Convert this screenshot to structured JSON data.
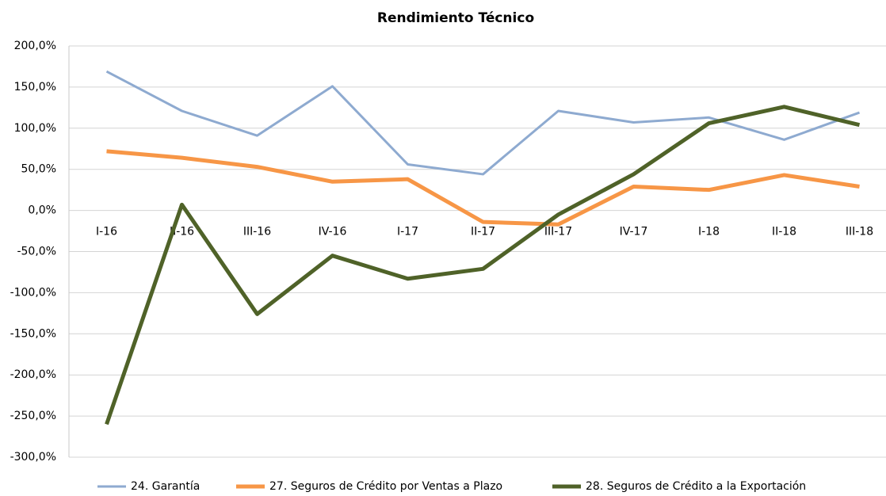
{
  "chart_data": {
    "type": "line",
    "title": "Rendimiento Técnico",
    "categories": [
      "I-16",
      "II-16",
      "III-16",
      "IV-16",
      "I-17",
      "II-17",
      "III-17",
      "IV-17",
      "I-18",
      "II-18",
      "III-18"
    ],
    "series": [
      {
        "name": "24. Garantía",
        "color": "#8eaad0",
        "values": [
          169,
          121,
          91,
          151,
          56,
          44,
          121,
          107,
          113,
          86,
          119
        ]
      },
      {
        "name": "27. Seguros de Crédito por Ventas a Plazo",
        "color": "#f79646",
        "values": [
          72,
          64,
          53,
          35,
          38,
          -14,
          -17,
          29,
          25,
          43,
          29
        ]
      },
      {
        "name": "28. Seguros de Crédito a la Exportación",
        "color": "#4f6228",
        "values": [
          -260,
          7,
          -126,
          -55,
          -83,
          -71,
          -5,
          44,
          106,
          126,
          104
        ]
      }
    ],
    "ylim": [
      -300,
      200
    ],
    "yticks": [
      {
        "value": -300,
        "label": "-300,0%"
      },
      {
        "value": -250,
        "label": "-250,0%"
      },
      {
        "value": -200,
        "label": "-200,0%"
      },
      {
        "value": -150,
        "label": "-150,0%"
      },
      {
        "value": -100,
        "label": "-100,0%"
      },
      {
        "value": -50,
        "label": "-50,0%"
      },
      {
        "value": 0,
        "label": "0,0%"
      },
      {
        "value": 50,
        "label": "50,0%"
      },
      {
        "value": 100,
        "label": "100,0%"
      },
      {
        "value": 150,
        "label": "150,0%"
      },
      {
        "value": 200,
        "label": "200,0%"
      }
    ],
    "grid": true,
    "legend": "bottom"
  }
}
